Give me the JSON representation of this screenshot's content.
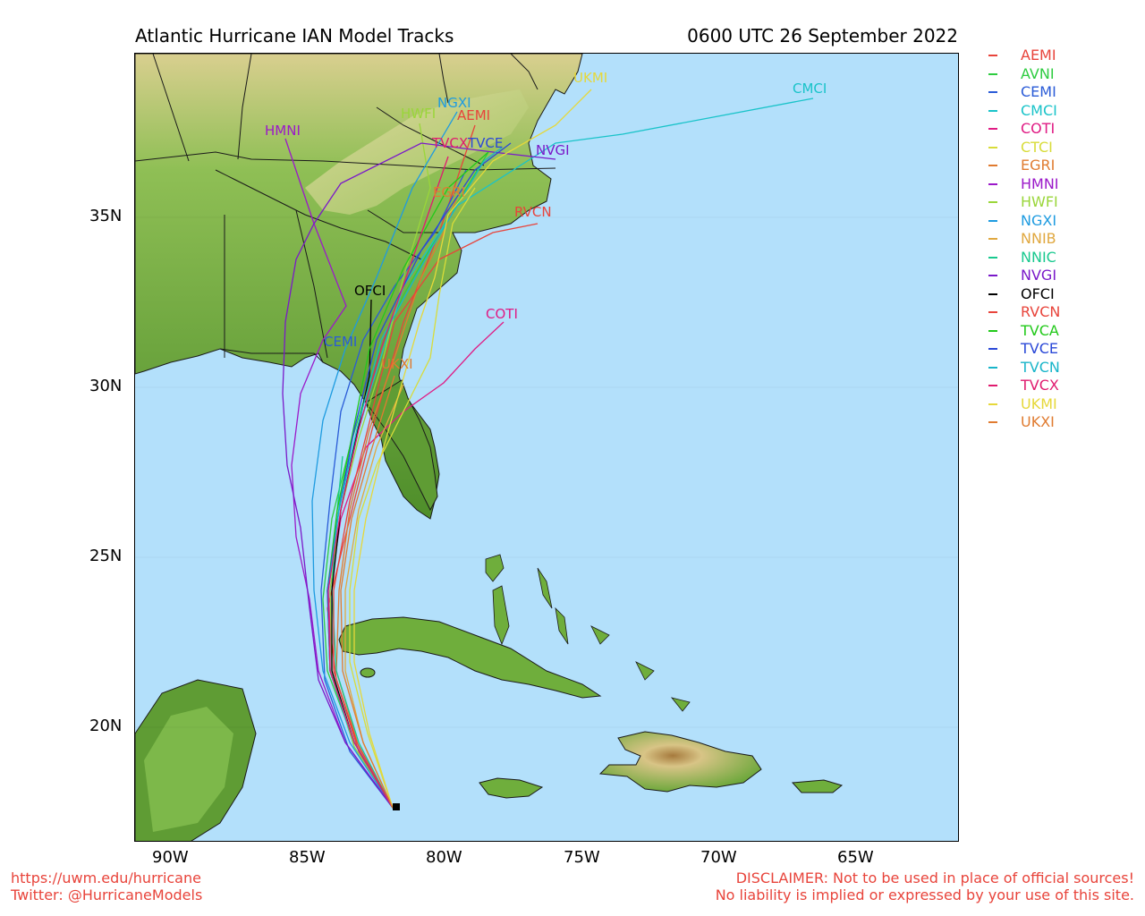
{
  "header": {
    "title": "Atlantic Hurricane IAN Model Tracks",
    "timestamp": "0600 UTC 26 September 2022"
  },
  "axes": {
    "lon_ticks": [
      "90W",
      "85W",
      "80W",
      "75W",
      "70W",
      "65W"
    ],
    "lat_ticks": [
      "35N",
      "30N",
      "25N",
      "20N"
    ]
  },
  "models": [
    {
      "name": "AEMI",
      "color": "#e8443b"
    },
    {
      "name": "AVNI",
      "color": "#2ecc40"
    },
    {
      "name": "CEMI",
      "color": "#2a5bd7"
    },
    {
      "name": "CMCI",
      "color": "#19c3c9"
    },
    {
      "name": "COTI",
      "color": "#e01b84"
    },
    {
      "name": "CTCI",
      "color": "#d8dc3a"
    },
    {
      "name": "EGRI",
      "color": "#e07b30"
    },
    {
      "name": "HMNI",
      "color": "#9b19c9"
    },
    {
      "name": "HWFI",
      "color": "#9ad63a"
    },
    {
      "name": "NGXI",
      "color": "#1e9be0"
    },
    {
      "name": "NNIB",
      "color": "#e0a840"
    },
    {
      "name": "NNIC",
      "color": "#19c98f"
    },
    {
      "name": "NVGI",
      "color": "#7a19c9"
    },
    {
      "name": "OFCI",
      "color": "#000000"
    },
    {
      "name": "RVCN",
      "color": "#e8443b"
    },
    {
      "name": "TVCA",
      "color": "#22c91a"
    },
    {
      "name": "TVCE",
      "color": "#2a48d7"
    },
    {
      "name": "TVCN",
      "color": "#19b5c9"
    },
    {
      "name": "TVCX",
      "color": "#e01b6f"
    },
    {
      "name": "UKMI",
      "color": "#e6d83a"
    },
    {
      "name": "UKXI",
      "color": "#e07b30"
    }
  ],
  "footer": {
    "url": "https://uwm.edu/hurricane",
    "twitter": "Twitter: @HurricaneModels",
    "disclaimer1": "DISCLAIMER: Not to be used in place of official sources!",
    "disclaimer2": "No liability is implied or expressed by your use of this site."
  }
}
